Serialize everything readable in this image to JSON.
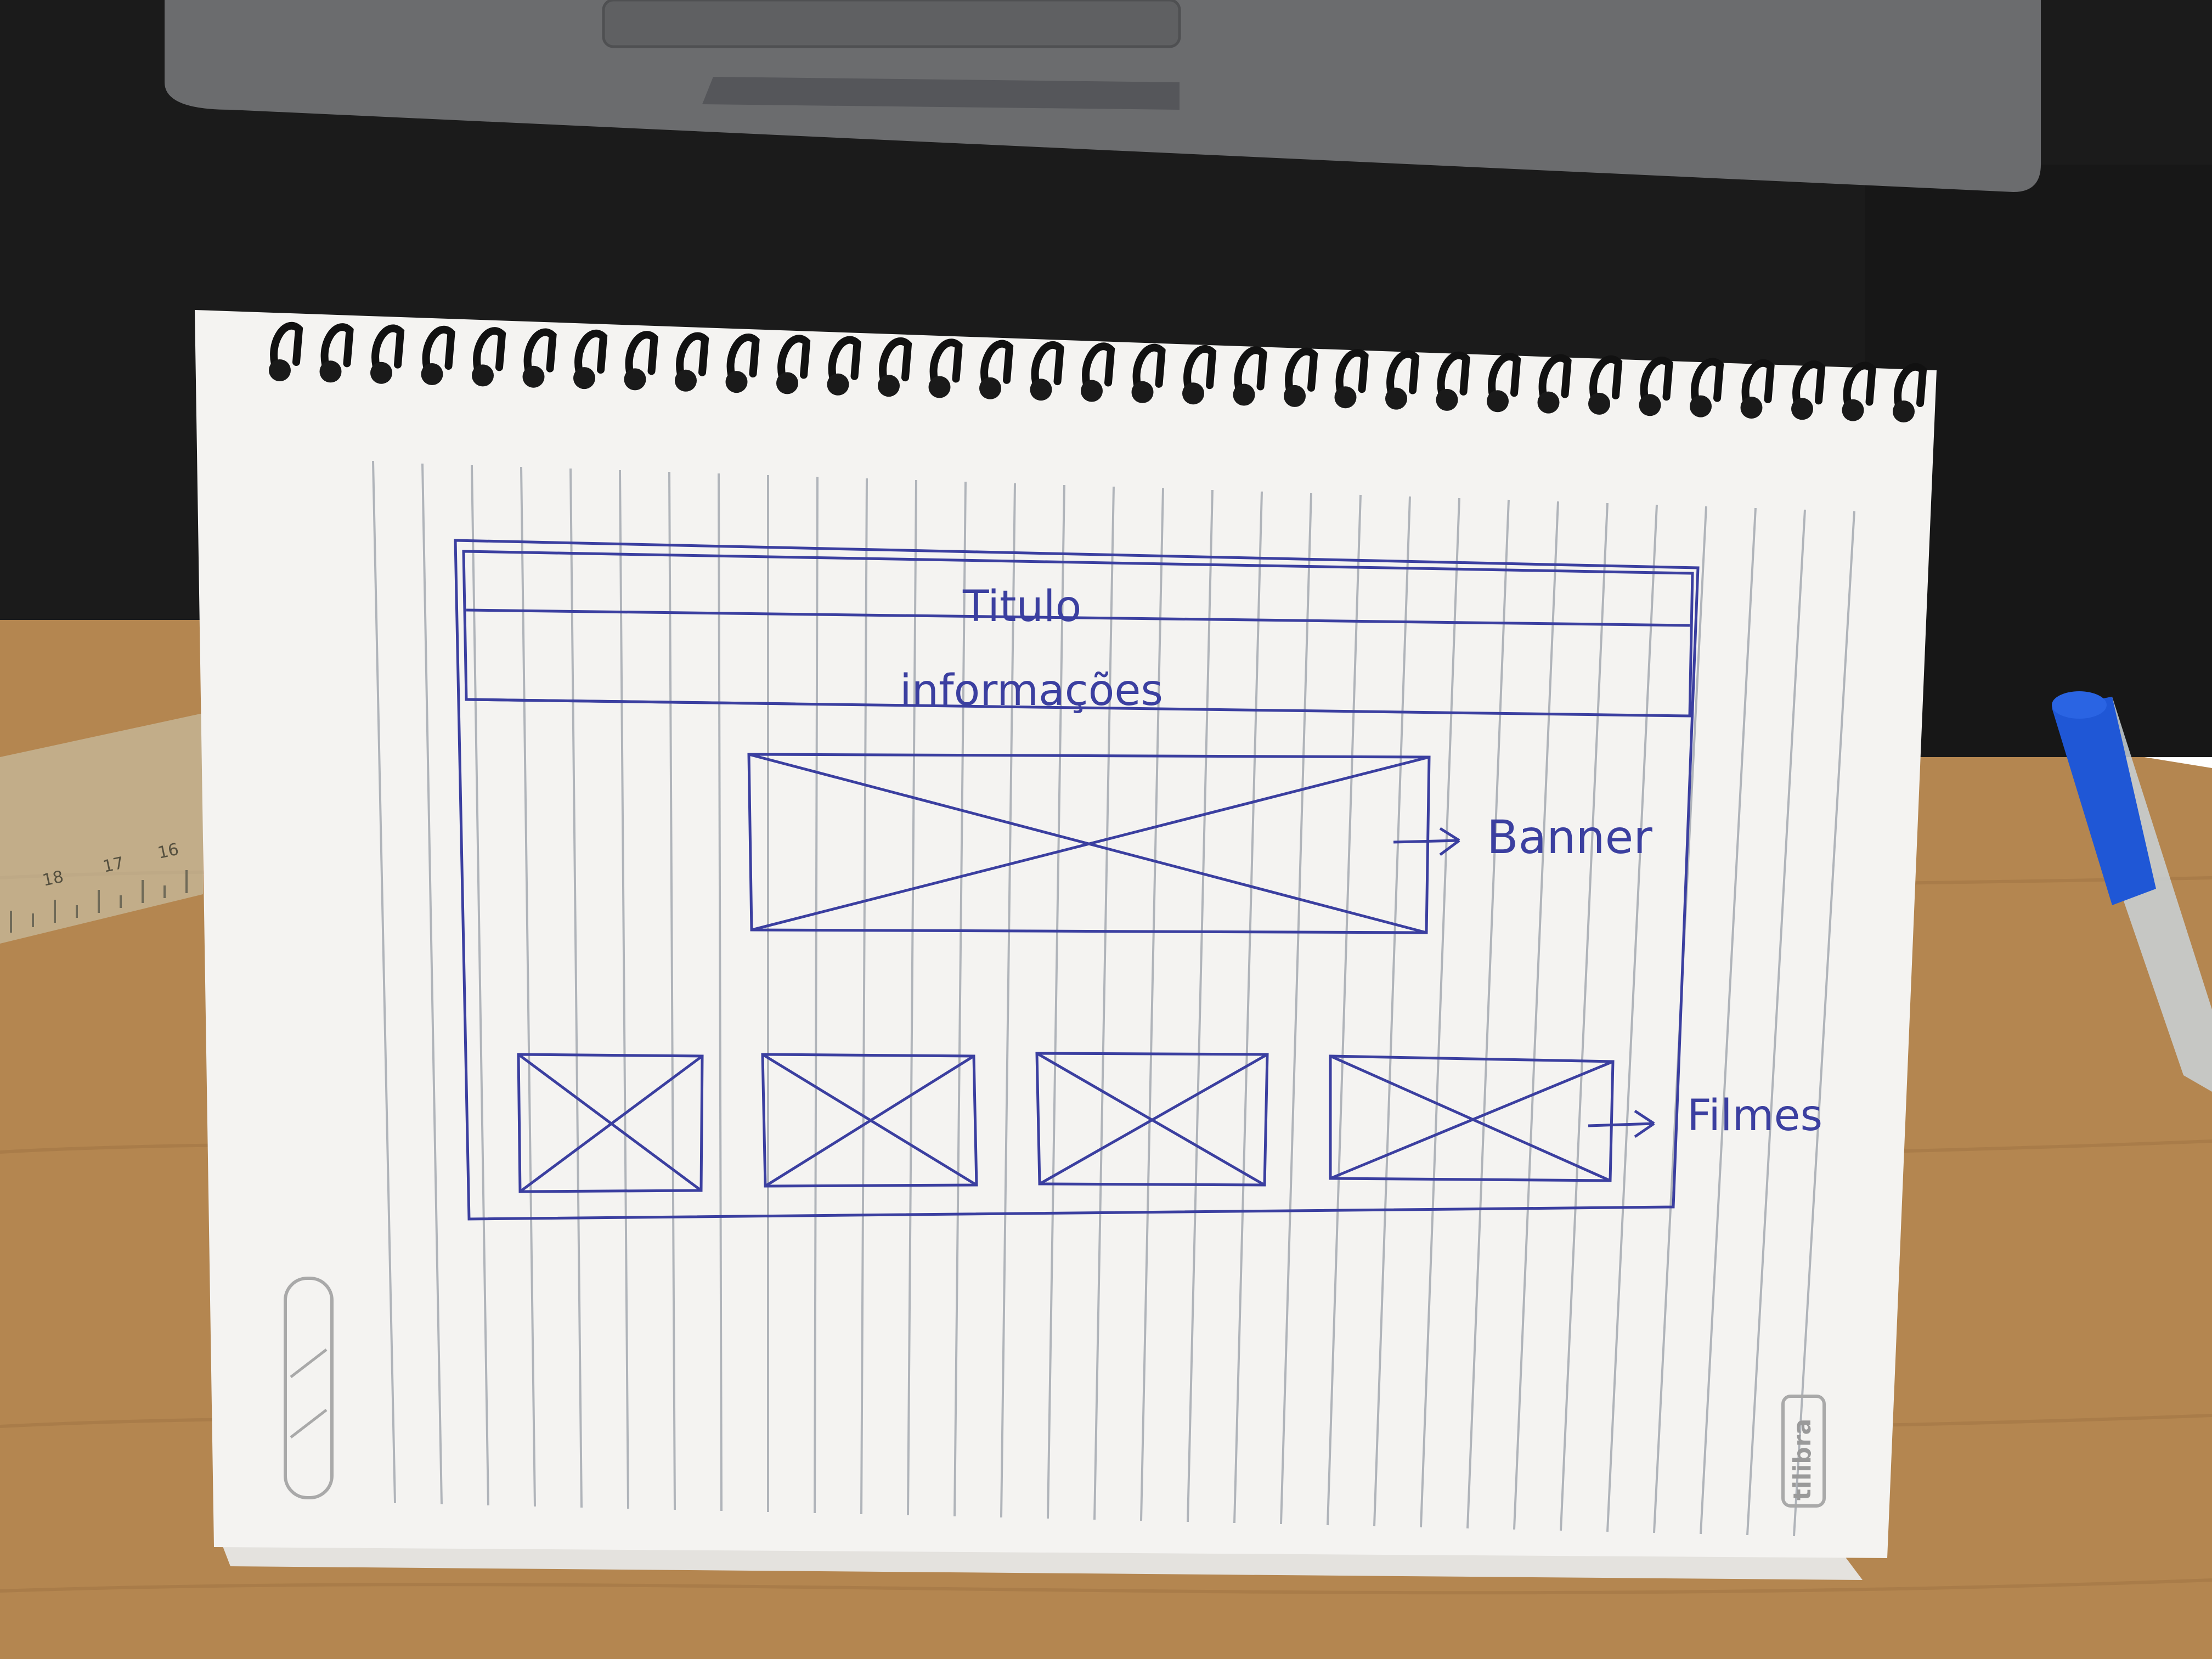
{
  "sketch": {
    "title_label": "Titulo",
    "info_label": "informações",
    "banner_label": "Banner",
    "films_label": "Filmes"
  },
  "notebook": {
    "brand": "tilibra"
  },
  "ruler": {
    "tick_labels": [
      "18",
      "17",
      "16"
    ]
  },
  "colors": {
    "ink": "#3b3fa0",
    "paper": "#f4f3f1",
    "desk_mat": "#1c1c1c",
    "wood": "#b98a52",
    "laptop": "#6d6e70",
    "pen_blue": "#1f57d6"
  }
}
